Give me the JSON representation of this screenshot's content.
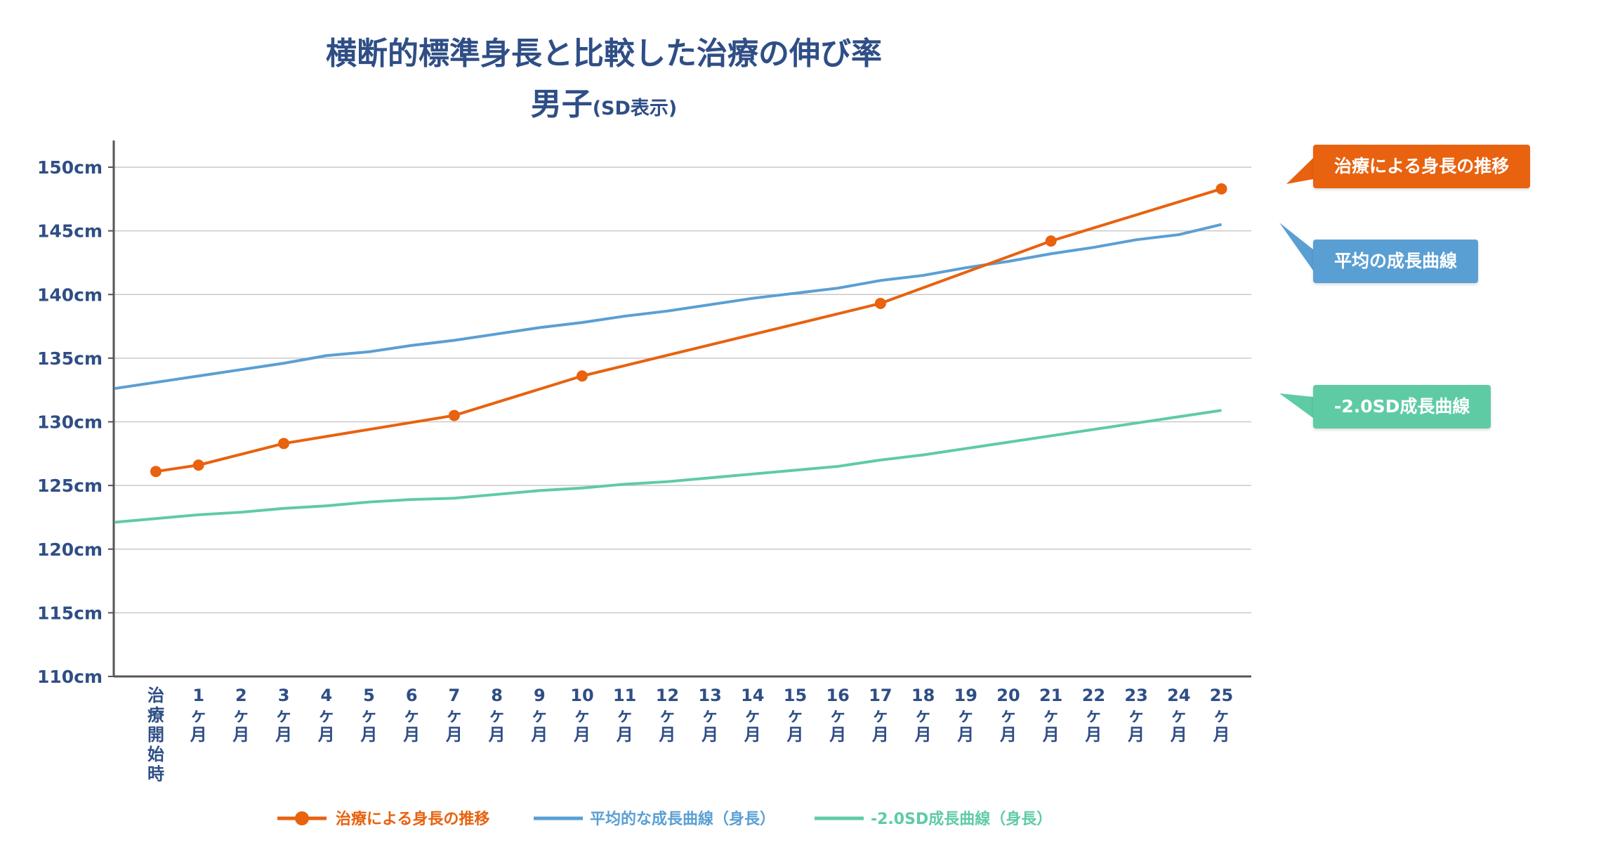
{
  "chart_data": {
    "type": "line",
    "title": "横断的標準身長と比較した治療の伸び率",
    "subtitle_main": "男子",
    "subtitle_note": "(SD表示)",
    "y_unit_suffix": "cm",
    "ylim": [
      110,
      152
    ],
    "yticks": [
      110,
      115,
      120,
      125,
      130,
      135,
      140,
      145,
      150
    ],
    "y_tick_labels": [
      "110cm",
      "115cm",
      "120cm",
      "125cm",
      "130cm",
      "135cm",
      "140cm",
      "145cm",
      "150cm"
    ],
    "grid": true,
    "categories": [
      [
        "治",
        "療",
        "開",
        "始",
        "時"
      ],
      [
        "1",
        "ヶ",
        "月"
      ],
      [
        "2",
        "ヶ",
        "月"
      ],
      [
        "3",
        "ヶ",
        "月"
      ],
      [
        "4",
        "ヶ",
        "月"
      ],
      [
        "5",
        "ヶ",
        "月"
      ],
      [
        "6",
        "ヶ",
        "月"
      ],
      [
        "7",
        "ヶ",
        "月"
      ],
      [
        "8",
        "ヶ",
        "月"
      ],
      [
        "9",
        "ヶ",
        "月"
      ],
      [
        "10",
        "ヶ",
        "月"
      ],
      [
        "11",
        "ヶ",
        "月"
      ],
      [
        "12",
        "ヶ",
        "月"
      ],
      [
        "13",
        "ヶ",
        "月"
      ],
      [
        "14",
        "ヶ",
        "月"
      ],
      [
        "15",
        "ヶ",
        "月"
      ],
      [
        "16",
        "ヶ",
        "月"
      ],
      [
        "17",
        "ヶ",
        "月"
      ],
      [
        "18",
        "ヶ",
        "月"
      ],
      [
        "19",
        "ヶ",
        "月"
      ],
      [
        "20",
        "ヶ",
        "月"
      ],
      [
        "21",
        "ヶ",
        "月"
      ],
      [
        "22",
        "ヶ",
        "月"
      ],
      [
        "23",
        "ヶ",
        "月"
      ],
      [
        "24",
        "ヶ",
        "月"
      ],
      [
        "25",
        "ヶ",
        "月"
      ]
    ],
    "series": [
      {
        "name": "治療による身長の推移",
        "color": "#e8620f",
        "markers": true,
        "points": [
          [
            0,
            126.1
          ],
          [
            1,
            126.6
          ],
          [
            3,
            128.3
          ],
          [
            7,
            130.5
          ],
          [
            10,
            133.6
          ],
          [
            17,
            139.3
          ],
          [
            21,
            144.2
          ],
          [
            25,
            148.3
          ]
        ]
      },
      {
        "name": "平均的な成長曲線（身長）",
        "color": "#5a9fd4",
        "markers": false,
        "points": [
          [
            -1,
            132.6
          ],
          [
            0,
            133.1
          ],
          [
            1,
            133.6
          ],
          [
            2,
            134.1
          ],
          [
            3,
            134.6
          ],
          [
            4,
            135.2
          ],
          [
            5,
            135.5
          ],
          [
            6,
            136.0
          ],
          [
            7,
            136.4
          ],
          [
            8,
            136.9
          ],
          [
            9,
            137.4
          ],
          [
            10,
            137.8
          ],
          [
            11,
            138.3
          ],
          [
            12,
            138.7
          ],
          [
            13,
            139.2
          ],
          [
            14,
            139.7
          ],
          [
            15,
            140.1
          ],
          [
            16,
            140.5
          ],
          [
            17,
            141.1
          ],
          [
            18,
            141.5
          ],
          [
            19,
            142.1
          ],
          [
            20,
            142.6
          ],
          [
            21,
            143.2
          ],
          [
            22,
            143.7
          ],
          [
            23,
            144.3
          ],
          [
            24,
            144.7
          ],
          [
            25,
            145.5
          ]
        ]
      },
      {
        "name": "-2.0SD成長曲線（身長）",
        "color": "#5fcba5",
        "markers": false,
        "points": [
          [
            -1,
            122.1
          ],
          [
            0,
            122.4
          ],
          [
            1,
            122.7
          ],
          [
            2,
            122.9
          ],
          [
            3,
            123.2
          ],
          [
            4,
            123.4
          ],
          [
            5,
            123.7
          ],
          [
            6,
            123.9
          ],
          [
            7,
            124.0
          ],
          [
            8,
            124.3
          ],
          [
            9,
            124.6
          ],
          [
            10,
            124.8
          ],
          [
            11,
            125.1
          ],
          [
            12,
            125.3
          ],
          [
            13,
            125.6
          ],
          [
            14,
            125.9
          ],
          [
            15,
            126.2
          ],
          [
            16,
            126.5
          ],
          [
            17,
            127.0
          ],
          [
            18,
            127.4
          ],
          [
            19,
            127.9
          ],
          [
            20,
            128.4
          ],
          [
            21,
            128.9
          ],
          [
            22,
            129.4
          ],
          [
            23,
            129.9
          ],
          [
            24,
            130.4
          ],
          [
            25,
            130.9
          ]
        ]
      }
    ],
    "legend_position": "bottom",
    "callouts": [
      {
        "text": "治療による身長の推移",
        "color": "#e8620f",
        "series": 0
      },
      {
        "text": "平均の成長曲線",
        "color": "#5a9fd4",
        "series": 1
      },
      {
        "text": "-2.0SD成長曲線",
        "color": "#5fcba5",
        "series": 2
      }
    ]
  }
}
